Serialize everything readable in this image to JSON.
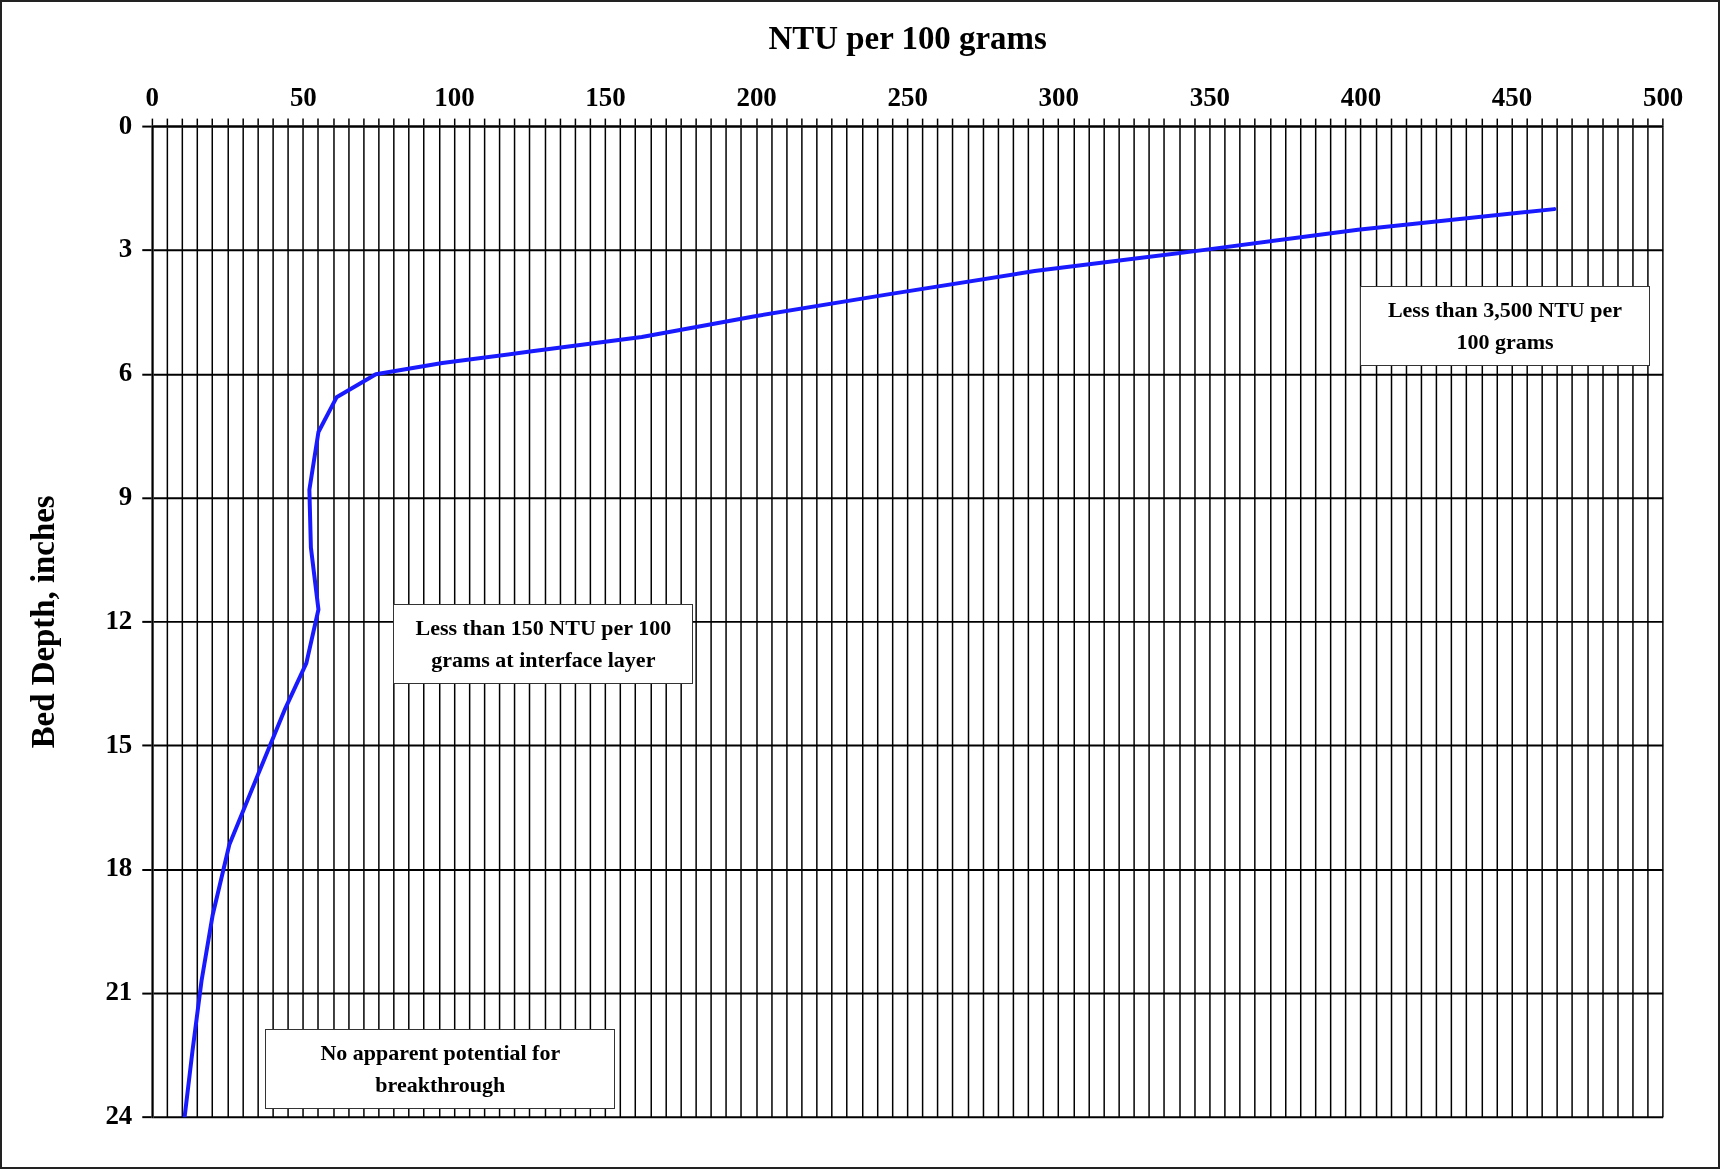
{
  "chart_data": {
    "type": "line",
    "xlabel": "NTU per 100 grams",
    "ylabel": "Bed Depth, inches",
    "xlim": [
      0,
      500
    ],
    "ylim": [
      24,
      0
    ],
    "xticks": [
      0,
      {
        "value": 5,
        "label": null
      },
      {
        "value": 10,
        "label": null
      },
      {
        "value": 15,
        "label": null
      },
      {
        "value": 20,
        "label": null
      },
      {
        "value": 25,
        "label": null
      },
      {
        "value": 30,
        "label": null
      },
      {
        "value": 35,
        "label": null
      },
      {
        "value": 40,
        "label": null
      },
      {
        "value": 45,
        "label": null
      },
      50,
      {
        "value": 55,
        "label": null
      },
      {
        "value": 60,
        "label": null
      },
      {
        "value": 65,
        "label": null
      },
      {
        "value": 70,
        "label": null
      },
      {
        "value": 75,
        "label": null
      },
      {
        "value": 80,
        "label": null
      },
      {
        "value": 85,
        "label": null
      },
      {
        "value": 90,
        "label": null
      },
      {
        "value": 95,
        "label": null
      },
      100,
      {
        "value": 105,
        "label": null
      },
      {
        "value": 110,
        "label": null
      },
      {
        "value": 115,
        "label": null
      },
      {
        "value": 120,
        "label": null
      },
      {
        "value": 125,
        "label": null
      },
      {
        "value": 130,
        "label": null
      },
      {
        "value": 135,
        "label": null
      },
      {
        "value": 140,
        "label": null
      },
      {
        "value": 145,
        "label": null
      },
      150,
      {
        "value": 155,
        "label": null
      },
      {
        "value": 160,
        "label": null
      },
      {
        "value": 165,
        "label": null
      },
      {
        "value": 170,
        "label": null
      },
      {
        "value": 175,
        "label": null
      },
      {
        "value": 180,
        "label": null
      },
      {
        "value": 185,
        "label": null
      },
      {
        "value": 190,
        "label": null
      },
      {
        "value": 195,
        "label": null
      },
      200,
      {
        "value": 205,
        "label": null
      },
      {
        "value": 210,
        "label": null
      },
      {
        "value": 215,
        "label": null
      },
      {
        "value": 220,
        "label": null
      },
      {
        "value": 225,
        "label": null
      },
      {
        "value": 230,
        "label": null
      },
      {
        "value": 235,
        "label": null
      },
      {
        "value": 240,
        "label": null
      },
      {
        "value": 245,
        "label": null
      },
      250,
      {
        "value": 255,
        "label": null
      },
      {
        "value": 260,
        "label": null
      },
      {
        "value": 265,
        "label": null
      },
      {
        "value": 270,
        "label": null
      },
      {
        "value": 275,
        "label": null
      },
      {
        "value": 280,
        "label": null
      },
      {
        "value": 285,
        "label": null
      },
      {
        "value": 290,
        "label": null
      },
      {
        "value": 295,
        "label": null
      },
      300,
      {
        "value": 305,
        "label": null
      },
      {
        "value": 310,
        "label": null
      },
      {
        "value": 315,
        "label": null
      },
      {
        "value": 320,
        "label": null
      },
      {
        "value": 325,
        "label": null
      },
      {
        "value": 330,
        "label": null
      },
      {
        "value": 335,
        "label": null
      },
      {
        "value": 340,
        "label": null
      },
      {
        "value": 345,
        "label": null
      },
      350,
      {
        "value": 355,
        "label": null
      },
      {
        "value": 360,
        "label": null
      },
      {
        "value": 365,
        "label": null
      },
      {
        "value": 370,
        "label": null
      },
      {
        "value": 375,
        "label": null
      },
      {
        "value": 380,
        "label": null
      },
      {
        "value": 385,
        "label": null
      },
      {
        "value": 390,
        "label": null
      },
      {
        "value": 395,
        "label": null
      },
      400,
      {
        "value": 405,
        "label": null
      },
      {
        "value": 410,
        "label": null
      },
      {
        "value": 415,
        "label": null
      },
      {
        "value": 420,
        "label": null
      },
      {
        "value": 425,
        "label": null
      },
      {
        "value": 430,
        "label": null
      },
      {
        "value": 435,
        "label": null
      },
      {
        "value": 440,
        "label": null
      },
      {
        "value": 445,
        "label": null
      },
      450,
      {
        "value": 455,
        "label": null
      },
      {
        "value": 460,
        "label": null
      },
      {
        "value": 465,
        "label": null
      },
      {
        "value": 470,
        "label": null
      },
      {
        "value": 475,
        "label": null
      },
      {
        "value": 480,
        "label": null
      },
      {
        "value": 485,
        "label": null
      },
      {
        "value": 490,
        "label": null
      },
      {
        "value": 495,
        "label": null
      },
      500
    ],
    "yticks": [
      0,
      3,
      6,
      9,
      12,
      15,
      18,
      21,
      24
    ],
    "grid": true,
    "legend": false,
    "marker": "none",
    "line_style": "solid",
    "series": [
      {
        "color": "#1a1aff",
        "x": [
          464,
          399,
          347,
          292,
          244,
          199,
          162,
          125,
          96,
          74,
          61,
          55,
          52,
          52.5,
          55,
          51,
          44,
          35,
          25.5,
          20,
          16.3,
          13.3,
          10.7
        ],
        "values": [
          2.0,
          2.5,
          3.0,
          3.5,
          4.06,
          4.6,
          5.1,
          5.45,
          5.73,
          6.0,
          6.56,
          7.4,
          8.8,
          10.2,
          11.7,
          13.0,
          14.1,
          15.7,
          17.4,
          19.1,
          20.7,
          22.4,
          24.0
        ]
      }
    ],
    "annotations": [
      "Less than 3,500 NTU per 100 grams",
      "Less than 150 NTU per 100 grams at interface layer",
      "No apparent potential for breakthrough"
    ]
  }
}
